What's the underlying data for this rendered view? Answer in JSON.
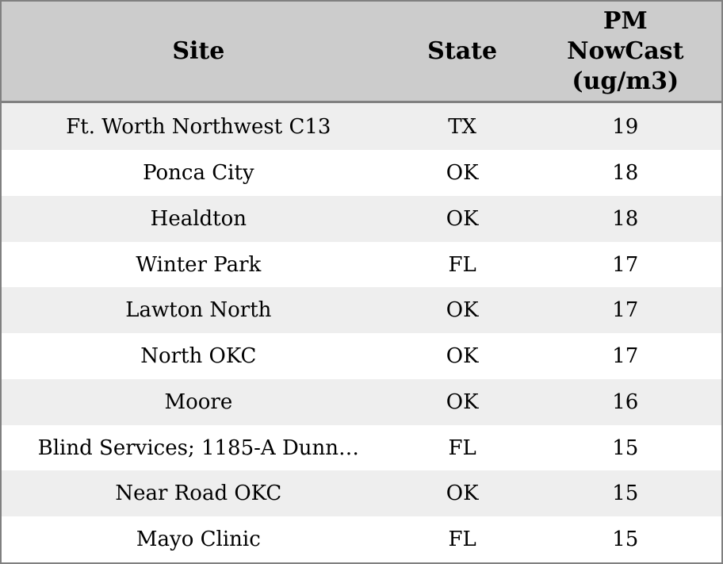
{
  "chart_data": {
    "type": "table",
    "title": "",
    "columns": [
      "Site",
      "State",
      "PM NowCast (ug/m3)"
    ],
    "rows": [
      [
        "Ft. Worth Northwest C13",
        "TX",
        19
      ],
      [
        "Ponca City",
        "OK",
        18
      ],
      [
        "Healdton",
        "OK",
        18
      ],
      [
        "Winter Park",
        "FL",
        17
      ],
      [
        "Lawton North",
        "OK",
        17
      ],
      [
        "North OKC",
        "OK",
        17
      ],
      [
        "Moore",
        "OK",
        16
      ],
      [
        "Blind Services; 1185-A Dunn…",
        "FL",
        15
      ],
      [
        "Near Road OKC",
        "OK",
        15
      ],
      [
        "Mayo Clinic",
        "FL",
        15
      ]
    ],
    "layout": {
      "grid": false,
      "row_striping": true
    }
  },
  "colors": {
    "border": "#808080",
    "header_bg": "#cccccc",
    "row_alt_bg": "#eeeeee",
    "row_bg": "#ffffff",
    "text": "#000000"
  }
}
